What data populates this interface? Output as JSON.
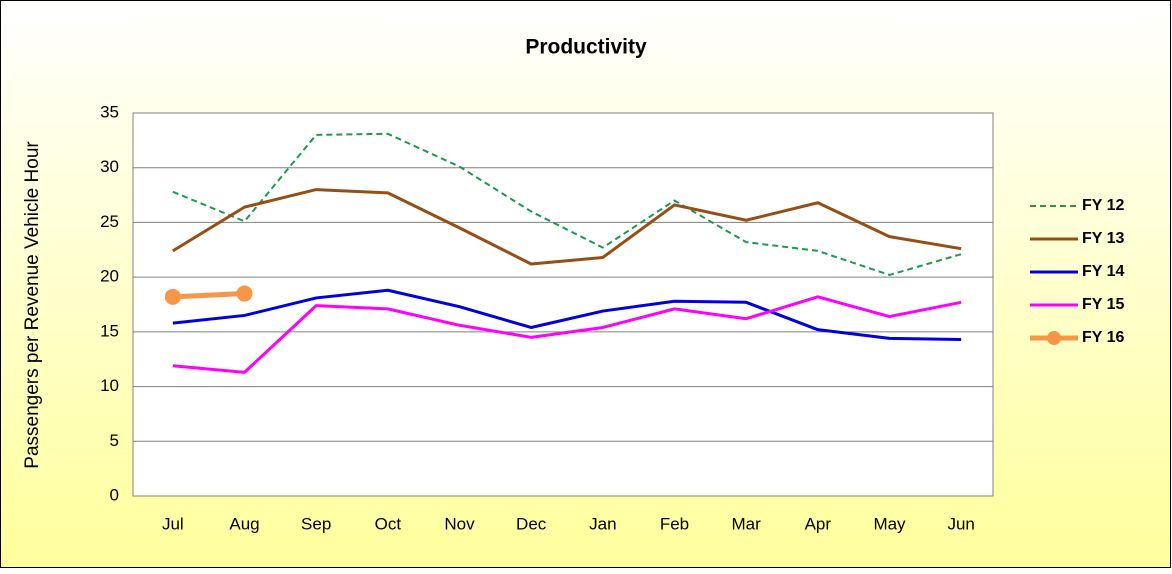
{
  "chart_data": {
    "type": "line",
    "title": "Productivity",
    "y_label": "Passengers per Revenue Vehicle Hour",
    "categories": [
      "Jul",
      "Aug",
      "Sep",
      "Oct",
      "Nov",
      "Dec",
      "Jan",
      "Feb",
      "Mar",
      "Apr",
      "May",
      "Jun"
    ],
    "ylim": [
      0,
      35
    ],
    "yticks": [
      0,
      5,
      10,
      15,
      20,
      25,
      30,
      35
    ],
    "grid": true,
    "legend": "right",
    "series": [
      {
        "name": "FY 12",
        "color": "#1a9a4a",
        "style": "dashed",
        "values": [
          27.8,
          25.1,
          33.0,
          33.1,
          30.1,
          26.0,
          22.7,
          27.0,
          23.2,
          22.4,
          20.2,
          22.1
        ]
      },
      {
        "name": "FY 13",
        "color": "#954f14",
        "values": [
          22.4,
          26.4,
          28.0,
          27.7,
          24.5,
          21.2,
          21.8,
          26.6,
          25.2,
          26.8,
          23.7,
          22.6
        ]
      },
      {
        "name": "FY 14",
        "color": "#0000e0",
        "values": [
          15.8,
          16.5,
          18.1,
          18.8,
          17.3,
          15.4,
          16.9,
          17.8,
          17.7,
          15.2,
          14.4,
          14.3
        ]
      },
      {
        "name": "FY 15",
        "color": "#ff00ff",
        "values": [
          11.9,
          11.3,
          17.4,
          17.1,
          15.6,
          14.5,
          15.4,
          17.1,
          16.2,
          18.2,
          16.4,
          17.7
        ]
      },
      {
        "name": "FY 16",
        "color": "#f79646",
        "marker": true,
        "values": [
          18.2,
          18.5,
          null,
          null,
          null,
          null,
          null,
          null,
          null,
          null,
          null,
          null
        ]
      }
    ]
  }
}
